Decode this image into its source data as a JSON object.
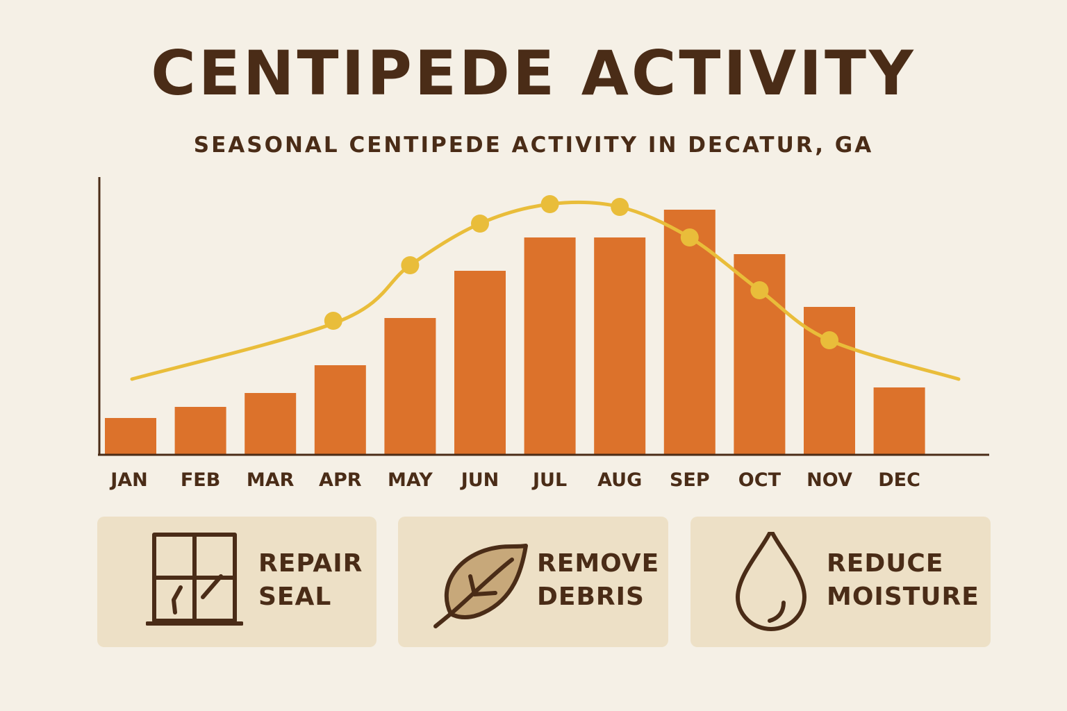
{
  "title": "CENTIPEDE ACTIVITY",
  "subtitle": "SEASONAL CENTIPEDE ACTIVITY IN DECATUR, GA",
  "colors": {
    "background": "#f5f0e6",
    "text": "#4a2c17",
    "bar": "#dc722b",
    "line": "#e9bd3a",
    "card": "#ede0c6"
  },
  "chart_data": {
    "type": "bar",
    "categories": [
      "JAN",
      "FEB",
      "MAR",
      "APR",
      "MAY",
      "JUN",
      "JUL",
      "AUG",
      "SEP",
      "OCT",
      "NOV",
      "DEC"
    ],
    "values": [
      13,
      17,
      22,
      32,
      49,
      66,
      78,
      78,
      88,
      72,
      53,
      24
    ],
    "line": {
      "points": [
        {
          "x": 3,
          "y": 48
        },
        {
          "x": 4,
          "y": 68
        },
        {
          "x": 5,
          "y": 83
        },
        {
          "x": 6,
          "y": 90
        },
        {
          "x": 7,
          "y": 89
        },
        {
          "x": 8,
          "y": 78
        },
        {
          "x": 9,
          "y": 59
        },
        {
          "x": 10,
          "y": 41
        }
      ],
      "curve_start": 27,
      "curve_end": 27
    },
    "ylim": [
      0,
      100
    ],
    "grid": false,
    "legend": "none"
  },
  "tips": [
    {
      "icon": "window-icon",
      "line1": "REPAIR",
      "line2": "SEAL"
    },
    {
      "icon": "leaf-icon",
      "line1": "REMOVE",
      "line2": "DEBRIS"
    },
    {
      "icon": "water-drop-icon",
      "line1": "REDUCE",
      "line2": "MOISTURE"
    }
  ]
}
